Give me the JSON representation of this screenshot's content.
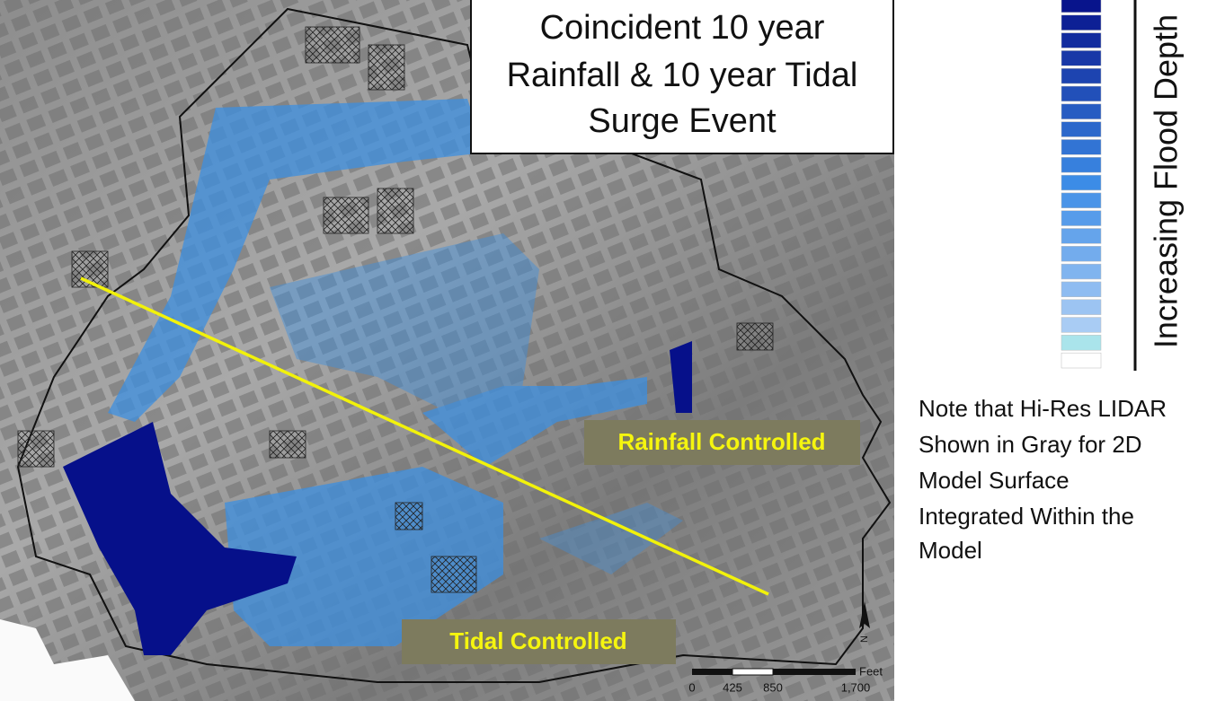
{
  "title": {
    "lines": [
      "Coincident 10 year",
      "Rainfall & 10 year Tidal",
      "Surge Event"
    ]
  },
  "labels": {
    "rainfall": "Rainfall Controlled",
    "tidal": "Tidal Controlled"
  },
  "legend": {
    "label": "Increasing Flood Depth"
  },
  "note": {
    "lines": [
      "Note that Hi-Res LIDAR",
      "Shown in Gray for 2D",
      "Model Surface",
      "Integrated Within the",
      "Model"
    ]
  },
  "scale": {
    "unit": "Feet",
    "labels": [
      "0",
      "425",
      "850",
      "1,700"
    ]
  },
  "north": "N"
}
